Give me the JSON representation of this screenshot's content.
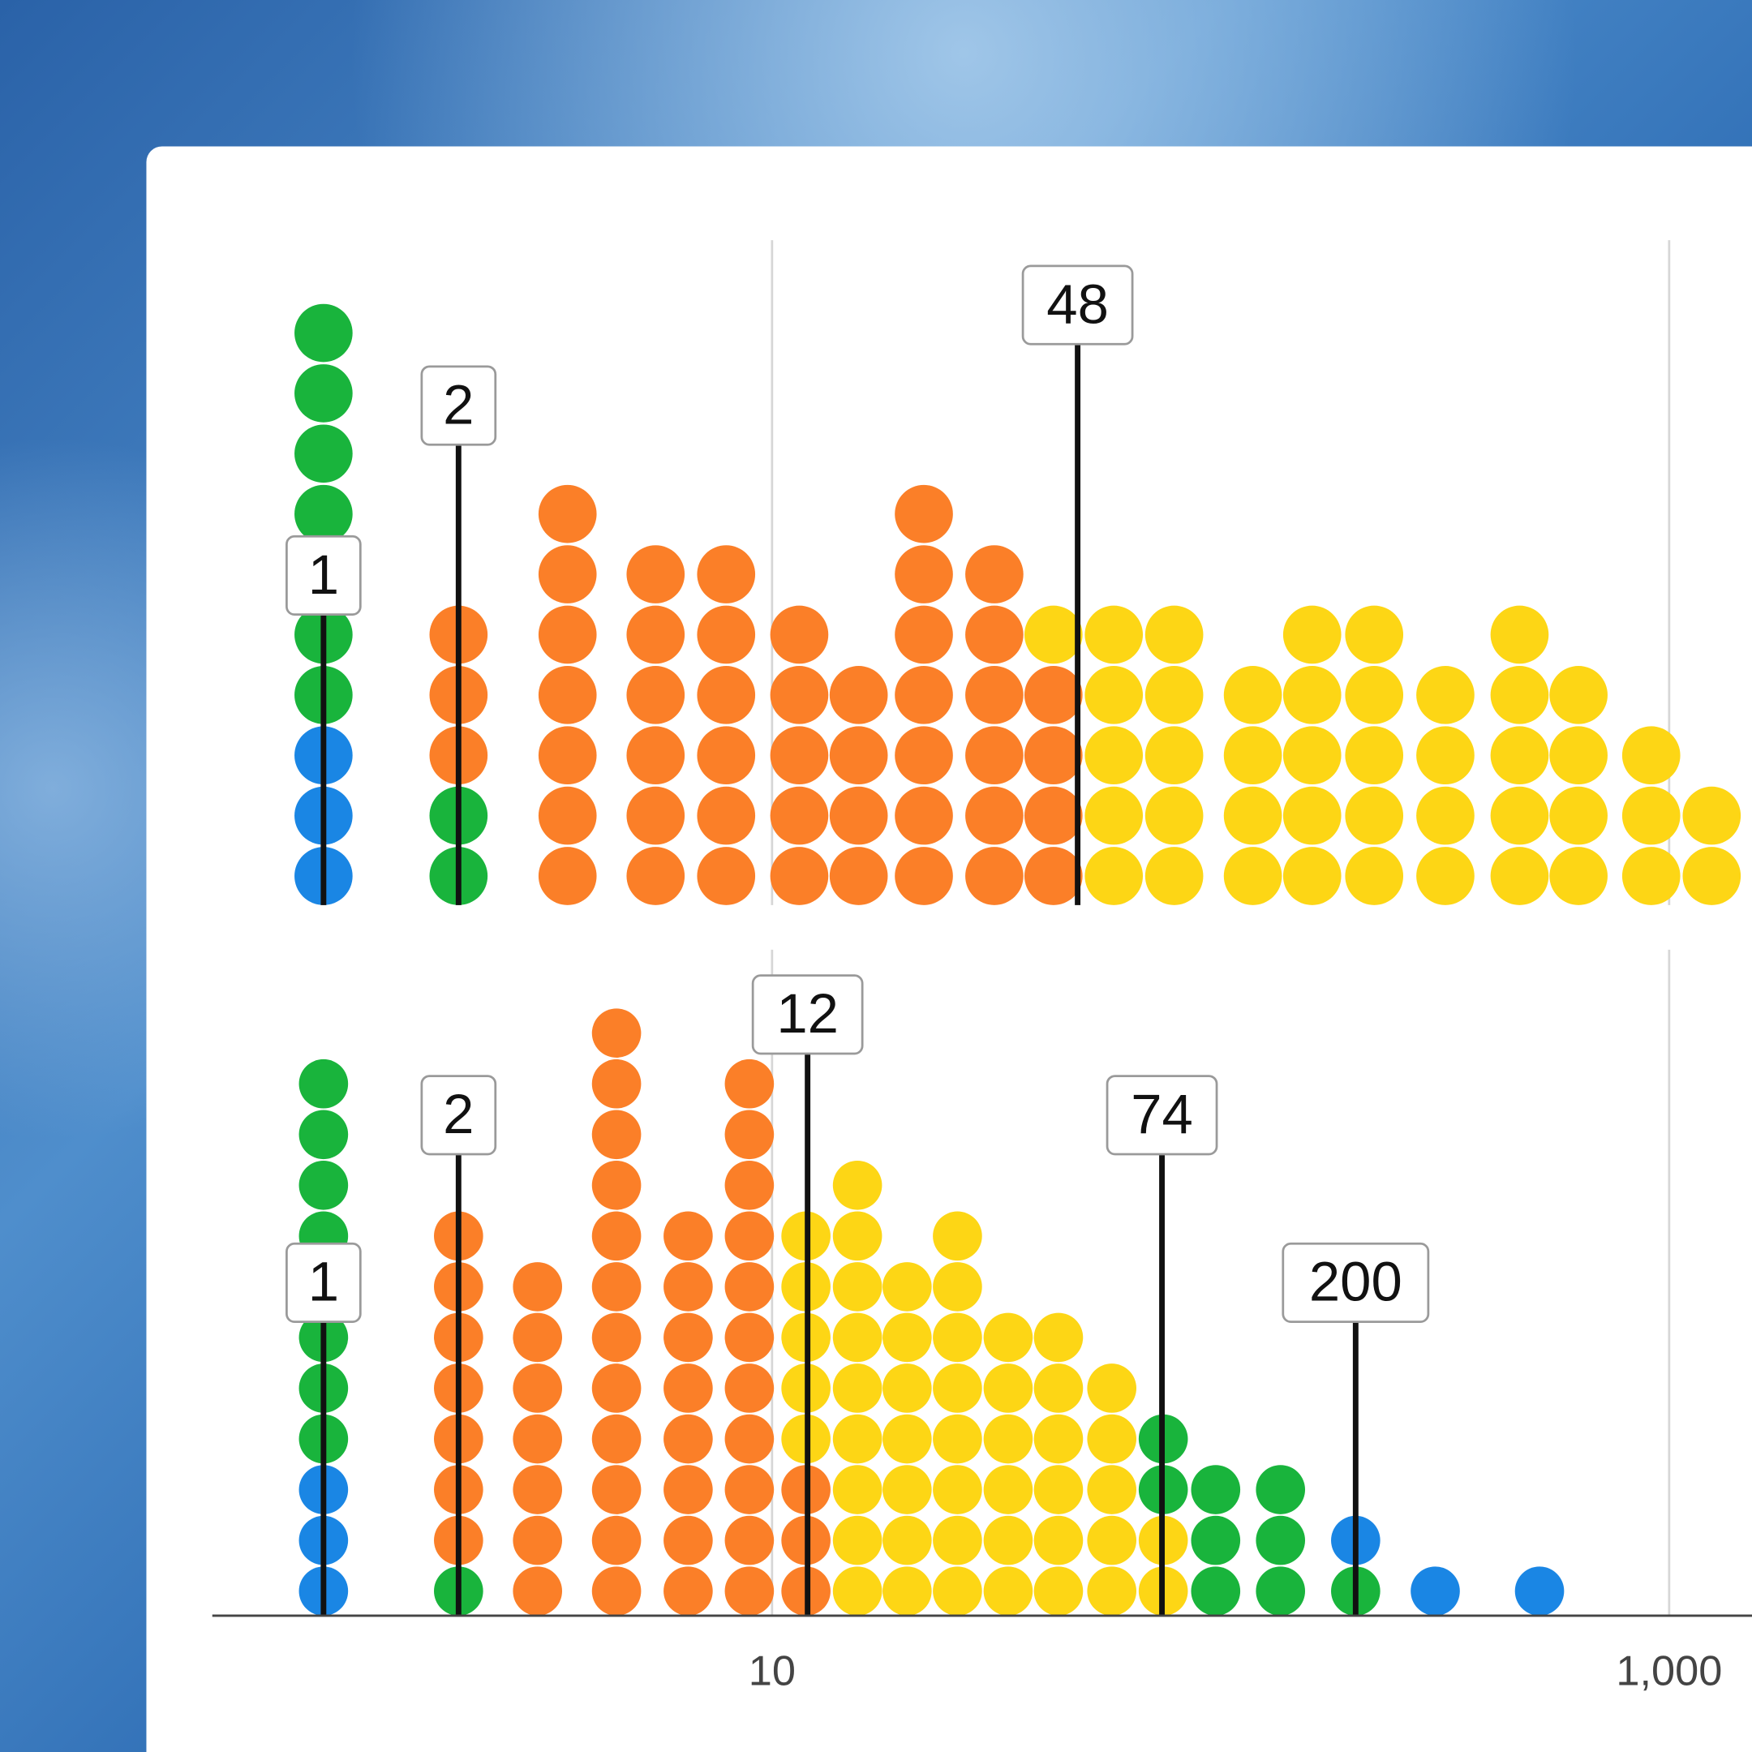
{
  "chart_data": {
    "type": "dotplot",
    "log_x": true,
    "grid": true,
    "xlim": [
      0.565,
      1530
    ],
    "xticks": [
      10,
      {
        "value": 1000,
        "label": "1,000"
      }
    ],
    "panels": [
      {
        "columns": [
          {
            "x": 1,
            "stack": [
              {
                "color": "#1a86e4",
                "count": 3
              },
              {
                "color": "#19b43c",
                "count": 7
              }
            ]
          },
          {
            "x": 2,
            "stack": [
              {
                "color": "#19b43c",
                "count": 2
              },
              {
                "color": "#fb7f28",
                "count": 3
              }
            ]
          },
          {
            "x": 3.5,
            "stack": [
              {
                "color": "#fb7f28",
                "count": 7
              }
            ]
          },
          {
            "x": 5.5,
            "stack": [
              {
                "color": "#fb7f28",
                "count": 6
              }
            ]
          },
          {
            "x": 7.9,
            "stack": [
              {
                "color": "#fb7f28",
                "count": 6
              }
            ]
          },
          {
            "x": 11.5,
            "stack": [
              {
                "color": "#fb7f28",
                "count": 5
              }
            ]
          },
          {
            "x": 15.6,
            "stack": [
              {
                "color": "#fb7f28",
                "count": 4
              }
            ]
          },
          {
            "x": 21.8,
            "stack": [
              {
                "color": "#fb7f28",
                "count": 7
              }
            ]
          },
          {
            "x": 31.3,
            "stack": [
              {
                "color": "#fb7f28",
                "count": 6
              }
            ]
          },
          {
            "x": 42.4,
            "stack": [
              {
                "color": "#fb7f28",
                "count": 4
              },
              {
                "color": "#fdd615",
                "count": 1
              }
            ]
          },
          {
            "x": 57.8,
            "stack": [
              {
                "color": "#fdd615",
                "count": 5
              }
            ]
          },
          {
            "x": 78.8,
            "stack": [
              {
                "color": "#fdd615",
                "count": 5
              }
            ]
          },
          {
            "x": 118,
            "stack": [
              {
                "color": "#fdd615",
                "count": 4
              }
            ]
          },
          {
            "x": 160,
            "stack": [
              {
                "color": "#fdd615",
                "count": 5
              }
            ]
          },
          {
            "x": 220,
            "stack": [
              {
                "color": "#fdd615",
                "count": 5
              }
            ]
          },
          {
            "x": 317,
            "stack": [
              {
                "color": "#fdd615",
                "count": 4
              }
            ]
          },
          {
            "x": 464,
            "stack": [
              {
                "color": "#fdd615",
                "count": 5
              }
            ]
          },
          {
            "x": 628,
            "stack": [
              {
                "color": "#fdd615",
                "count": 4
              }
            ]
          },
          {
            "x": 912,
            "stack": [
              {
                "color": "#fdd615",
                "count": 3
              }
            ]
          },
          {
            "x": 1244,
            "stack": [
              {
                "color": "#fdd615",
                "count": 2
              }
            ]
          }
        ],
        "markers": [
          1,
          2,
          48
        ]
      },
      {
        "columns": [
          {
            "x": 1,
            "stack": [
              {
                "color": "#1a86e4",
                "count": 3
              },
              {
                "color": "#19b43c",
                "count": 8
              }
            ]
          },
          {
            "x": 2,
            "stack": [
              {
                "color": "#19b43c",
                "count": 1
              },
              {
                "color": "#fb7f28",
                "count": 7
              }
            ]
          },
          {
            "x": 3.0,
            "stack": [
              {
                "color": "#fb7f28",
                "count": 7
              }
            ]
          },
          {
            "x": 4.5,
            "stack": [
              {
                "color": "#fb7f28",
                "count": 12
              }
            ]
          },
          {
            "x": 6.5,
            "stack": [
              {
                "color": "#fb7f28",
                "count": 8
              }
            ]
          },
          {
            "x": 8.9,
            "stack": [
              {
                "color": "#fb7f28",
                "count": 11
              }
            ]
          },
          {
            "x": 11.9,
            "stack": [
              {
                "color": "#fb7f28",
                "count": 3
              },
              {
                "color": "#fdd615",
                "count": 5
              }
            ]
          },
          {
            "x": 15.5,
            "stack": [
              {
                "color": "#fdd615",
                "count": 9
              }
            ]
          },
          {
            "x": 20.0,
            "stack": [
              {
                "color": "#fdd615",
                "count": 7
              }
            ]
          },
          {
            "x": 25.9,
            "stack": [
              {
                "color": "#fdd615",
                "count": 8
              }
            ]
          },
          {
            "x": 33.6,
            "stack": [
              {
                "color": "#fdd615",
                "count": 6
              }
            ]
          },
          {
            "x": 43.5,
            "stack": [
              {
                "color": "#fdd615",
                "count": 6
              }
            ]
          },
          {
            "x": 57.2,
            "stack": [
              {
                "color": "#fdd615",
                "count": 5
              }
            ]
          },
          {
            "x": 74.5,
            "stack": [
              {
                "color": "#fdd615",
                "count": 2
              },
              {
                "color": "#19b43c",
                "count": 2
              }
            ]
          },
          {
            "x": 97.5,
            "stack": [
              {
                "color": "#19b43c",
                "count": 3
              }
            ]
          },
          {
            "x": 136,
            "stack": [
              {
                "color": "#19b43c",
                "count": 3
              }
            ]
          },
          {
            "x": 200,
            "stack": [
              {
                "color": "#19b43c",
                "count": 1
              },
              {
                "color": "#1a86e4",
                "count": 1
              }
            ]
          },
          {
            "x": 301,
            "stack": [
              {
                "color": "#1a86e4",
                "count": 1
              }
            ]
          },
          {
            "x": 514,
            "stack": [
              {
                "color": "#1a86e4",
                "count": 1
              }
            ]
          }
        ],
        "markers": [
          1,
          2,
          12,
          74,
          200
        ]
      }
    ]
  }
}
